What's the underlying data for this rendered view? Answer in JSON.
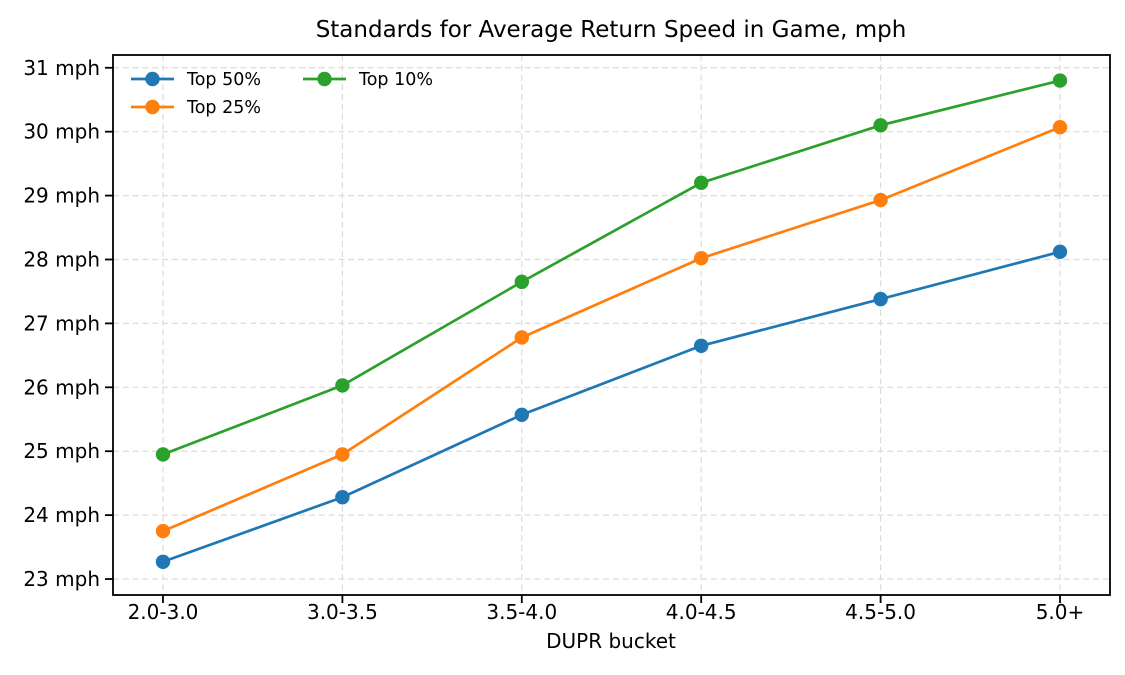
{
  "page": {
    "background_color": "#ffffff",
    "text_color": "#000000",
    "grid_color": "#dcdcdc",
    "spine_color": "#000000"
  },
  "chart_data": {
    "type": "line",
    "title": "Standards for Average Return Speed in Game, mph",
    "xlabel": "DUPR bucket",
    "ylabel": "",
    "categories": [
      "2.0-3.0",
      "3.0-3.5",
      "3.5-4.0",
      "4.0-4.5",
      "4.5-5.0",
      "5.0+"
    ],
    "y_ticks": [
      23,
      24,
      25,
      26,
      27,
      28,
      29,
      30,
      31
    ],
    "y_tick_suffix": " mph",
    "ylim": [
      22.75,
      31.2
    ],
    "grid": true,
    "grid_style": "dashed",
    "legend_position": "upper-left",
    "series": [
      {
        "name": "Top 50%",
        "color": "#1f77b4",
        "values": [
          23.27,
          24.28,
          25.57,
          26.65,
          27.38,
          28.12
        ]
      },
      {
        "name": "Top 25%",
        "color": "#ff7f0e",
        "values": [
          23.75,
          24.95,
          26.78,
          28.02,
          28.93,
          30.07
        ]
      },
      {
        "name": "Top 10%",
        "color": "#2ca02c",
        "values": [
          24.95,
          26.03,
          27.65,
          29.2,
          30.1,
          30.8
        ]
      }
    ]
  }
}
